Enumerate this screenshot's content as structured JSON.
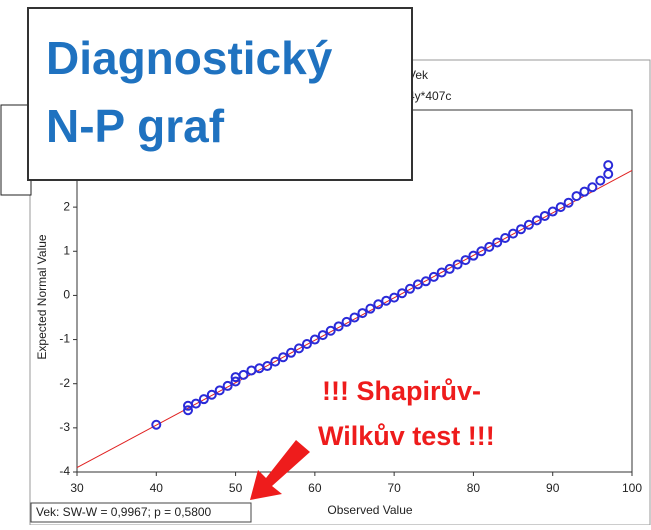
{
  "chart_data": {
    "type": "scatter",
    "header": [
      "Vek",
      "4y*407c"
    ],
    "overlay_title": [
      "Diagnostický",
      "N-P graf"
    ],
    "annotation": [
      "!!! Shapirův-",
      "Wilkův test !!!"
    ],
    "status": "Vek:  SW-W = 0,9967; p = 0,5800",
    "xlabel": "Observed Value",
    "ylabel": "Expected Normal Value",
    "xlim": [
      30,
      100
    ],
    "ylim": [
      -4,
      4.2
    ],
    "xticks": [
      30,
      40,
      50,
      60,
      70,
      80,
      90,
      100
    ],
    "yticks": [
      -4,
      -3,
      -2,
      -1,
      0,
      1,
      2
    ],
    "color": "#2a2ad8",
    "line_color": "#e02020",
    "fit_line": {
      "x": [
        30,
        100
      ],
      "y": [
        -3.9,
        2.83
      ]
    },
    "x": [
      40,
      44,
      44,
      45,
      46,
      47,
      48,
      49,
      50,
      50,
      51,
      52,
      53,
      54,
      55,
      56,
      57,
      58,
      59,
      60,
      61,
      62,
      63,
      64,
      65,
      66,
      67,
      68,
      69,
      70,
      71,
      72,
      73,
      74,
      75,
      76,
      77,
      78,
      79,
      80,
      81,
      82,
      83,
      84,
      85,
      86,
      87,
      88,
      89,
      90,
      91,
      92,
      93,
      94,
      95,
      96,
      97,
      97
    ],
    "y": [
      -2.93,
      -2.6,
      -2.5,
      -2.45,
      -2.35,
      -2.25,
      -2.15,
      -2.05,
      -1.95,
      -1.85,
      -1.8,
      -1.7,
      -1.65,
      -1.6,
      -1.5,
      -1.4,
      -1.3,
      -1.2,
      -1.1,
      -1.0,
      -0.9,
      -0.8,
      -0.7,
      -0.6,
      -0.5,
      -0.4,
      -0.3,
      -0.2,
      -0.12,
      -0.05,
      0.05,
      0.15,
      0.25,
      0.32,
      0.42,
      0.52,
      0.6,
      0.7,
      0.8,
      0.9,
      1.0,
      1.1,
      1.2,
      1.3,
      1.4,
      1.5,
      1.6,
      1.7,
      1.8,
      1.9,
      2.0,
      2.1,
      2.25,
      2.35,
      2.45,
      2.6,
      2.75,
      2.95
    ]
  }
}
